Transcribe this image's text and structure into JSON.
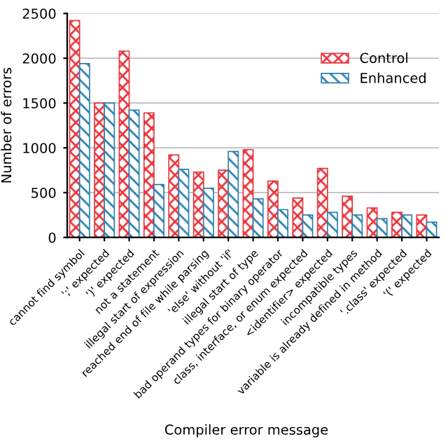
{
  "chart_data": {
    "type": "bar",
    "xlabel": "Compiler error message",
    "ylabel": "Number of errors",
    "categories": [
      "cannot find symbol",
      "';' expected",
      "')' expected",
      "not a statement",
      "illegal start of expression",
      "reached end of file while parsing",
      "'else' without 'if'",
      "illegal start of type",
      "bad operand types for binary operator",
      "class, interface, or enum expected",
      "<identifier> expected",
      "incompatible types",
      "variable is already defined in method",
      "'.class' expected",
      "'(' expected"
    ],
    "series": [
      {
        "name": "Control",
        "color": "#e8343c",
        "values": [
          2420,
          1500,
          2080,
          1390,
          920,
          730,
          750,
          980,
          630,
          440,
          770,
          460,
          330,
          280,
          250
        ]
      },
      {
        "name": "Enhanced",
        "color": "#2a7fb0",
        "values": [
          1940,
          1500,
          1420,
          590,
          760,
          550,
          960,
          430,
          310,
          250,
          280,
          250,
          210,
          250,
          170
        ]
      }
    ],
    "ylim": [
      0,
      2500
    ],
    "yticks": [
      0,
      500,
      1000,
      1500,
      2000,
      2500
    ],
    "grid": "y",
    "legend": "top right"
  }
}
